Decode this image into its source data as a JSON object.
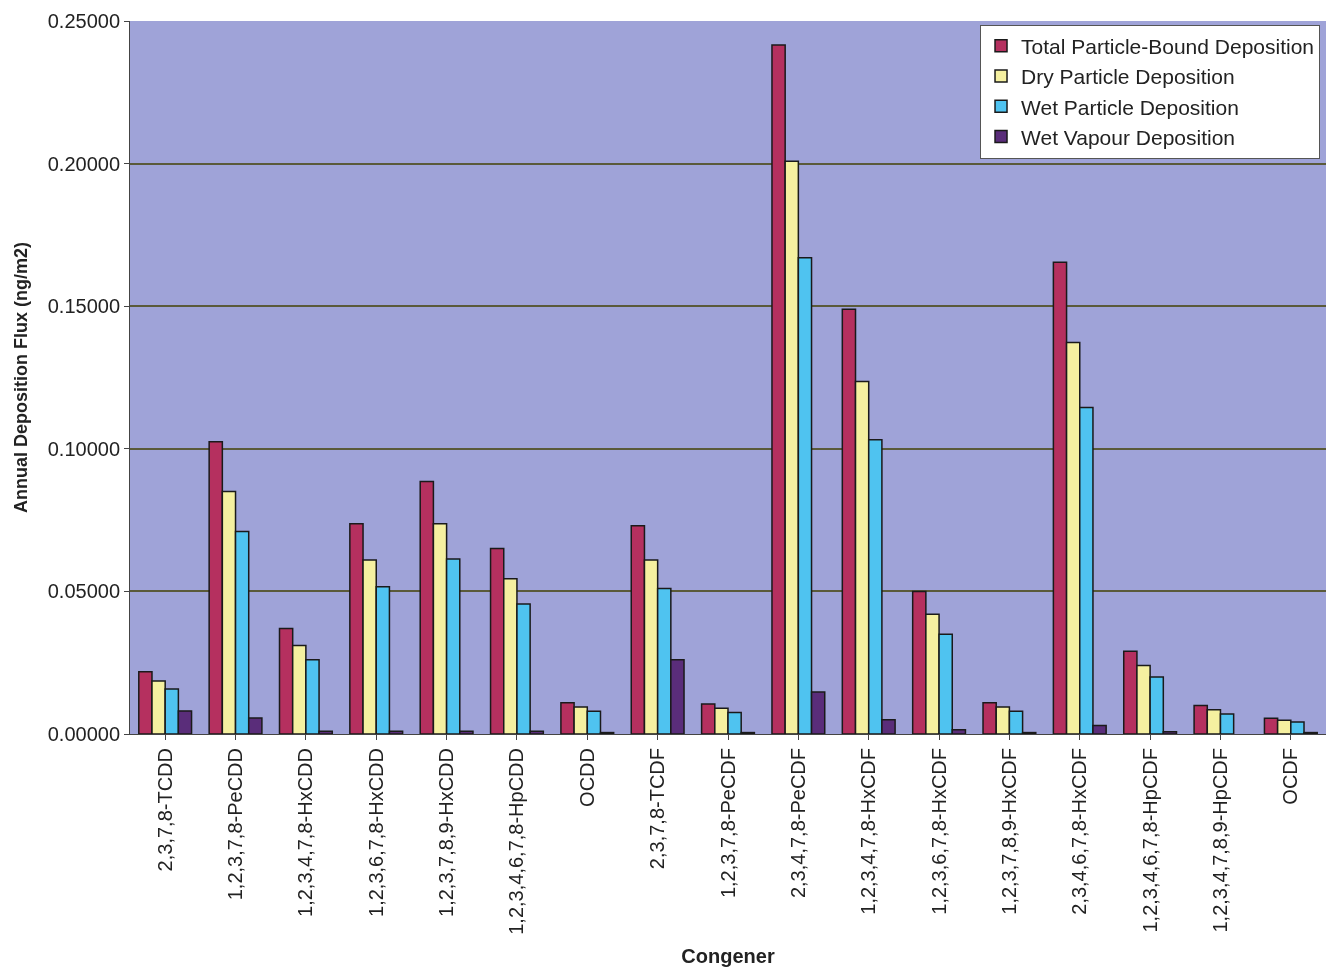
{
  "chart_data": {
    "type": "bar",
    "xlabel": "Congener",
    "ylabel": "Annual Deposition Flux (ng/m2)",
    "categories": [
      "2,3,7,8-TCDD",
      "1,2,3,7,8-PeCDD",
      "1,2,3,4,7,8-HxCDD",
      "1,2,3,6,7,8-HxCDD",
      "1,2,3,7,8,9-HxCDD",
      "1,2,3,4,6,7,8-HpCDD",
      "OCDD",
      "2,3,7,8-TCDF",
      "1,2,3,7,8-PeCDF",
      "2,3,4,7,8-PeCDF",
      "1,2,3,4,7,8-HxCDF",
      "1,2,3,6,7,8-HxCDF",
      "1,2,3,7,8,9-HxCDF",
      "2,3,4,6,7,8-HxCDF",
      "1,2,3,4,6,7,8-HpCDF",
      "1,2,3,4,7,8,9-HpCDF",
      "OCDF"
    ],
    "series": [
      {
        "name": "Total Particle-Bound Deposition",
        "color": "#b5305f",
        "values": [
          0.0218,
          0.1025,
          0.037,
          0.0737,
          0.0885,
          0.065,
          0.011,
          0.073,
          0.0105,
          0.2416,
          0.1489,
          0.05,
          0.011,
          0.1654,
          0.029,
          0.01,
          0.0055
        ]
      },
      {
        "name": "Dry Particle Deposition",
        "color": "#f5f0a0",
        "values": [
          0.0186,
          0.085,
          0.031,
          0.061,
          0.0737,
          0.0544,
          0.0095,
          0.061,
          0.009,
          0.2008,
          0.1236,
          0.042,
          0.0095,
          0.1373,
          0.024,
          0.0085,
          0.0048
        ]
      },
      {
        "name": "Wet Particle Deposition",
        "color": "#4fc3f0",
        "values": [
          0.0158,
          0.071,
          0.026,
          0.0516,
          0.0614,
          0.0456,
          0.008,
          0.051,
          0.0075,
          0.167,
          0.1032,
          0.035,
          0.008,
          0.1145,
          0.02,
          0.007,
          0.0042
        ]
      },
      {
        "name": "Wet Vapour Deposition",
        "color": "#5a2d7a",
        "values": [
          0.0081,
          0.0056,
          0.001,
          0.001,
          0.001,
          0.001,
          0.0005,
          0.026,
          0.0005,
          0.0147,
          0.005,
          0.0015,
          0.0005,
          0.003,
          0.0008,
          null,
          0.0005
        ]
      }
    ],
    "ylim": [
      0,
      0.25
    ],
    "yticks": [
      {
        "value": 0,
        "label": "0.00000"
      },
      {
        "value": 0.05,
        "label": "0.05000"
      },
      {
        "value": 0.1,
        "label": "0.10000"
      },
      {
        "value": 0.15,
        "label": "0.15000"
      },
      {
        "value": 0.2,
        "label": "0.20000"
      },
      {
        "value": 0.25,
        "label": "0.25000"
      }
    ],
    "grid": "y",
    "legend": "top right"
  }
}
